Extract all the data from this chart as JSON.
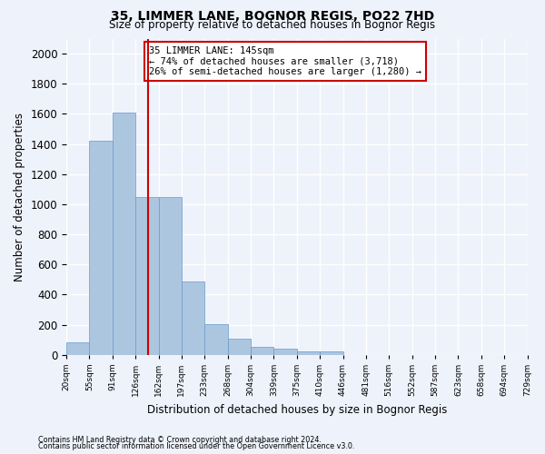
{
  "title_line1": "35, LIMMER LANE, BOGNOR REGIS, PO22 7HD",
  "title_line2": "Size of property relative to detached houses in Bognor Regis",
  "xlabel": "Distribution of detached houses by size in Bognor Regis",
  "ylabel": "Number of detached properties",
  "bin_labels": [
    "20sqm",
    "55sqm",
    "91sqm",
    "126sqm",
    "162sqm",
    "197sqm",
    "233sqm",
    "268sqm",
    "304sqm",
    "339sqm",
    "375sqm",
    "410sqm",
    "446sqm",
    "481sqm",
    "516sqm",
    "552sqm",
    "587sqm",
    "623sqm",
    "658sqm",
    "694sqm",
    "729sqm"
  ],
  "bar_values": [
    80,
    1420,
    1610,
    1050,
    1050,
    490,
    205,
    105,
    50,
    40,
    25,
    20,
    0,
    0,
    0,
    0,
    0,
    0,
    0,
    0
  ],
  "bar_color": "#adc6e0",
  "bar_edgecolor": "#6699cc",
  "marker_bin": 3.5,
  "marker_color": "#cc0000",
  "annotation_text": "35 LIMMER LANE: 145sqm\n← 74% of detached houses are smaller (3,718)\n26% of semi-detached houses are larger (1,280) →",
  "annotation_box_edgecolor": "#cc0000",
  "annotation_box_facecolor": "#ffffff",
  "ylim": [
    0,
    2100
  ],
  "yticks": [
    0,
    200,
    400,
    600,
    800,
    1000,
    1200,
    1400,
    1600,
    1800,
    2000
  ],
  "footer_line1": "Contains HM Land Registry data © Crown copyright and database right 2024.",
  "footer_line2": "Contains public sector information licensed under the Open Government Licence v3.0.",
  "background_color": "#eef2fb",
  "plot_background": "#eef2fb",
  "grid_color": "#ffffff"
}
